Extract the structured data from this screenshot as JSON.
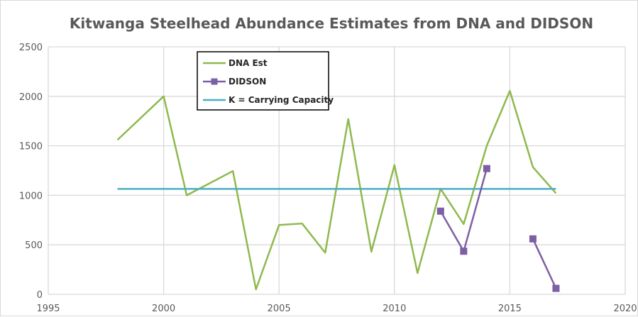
{
  "chart_data": {
    "type": "line",
    "title": "Kitwanga Steelhead Abundance Estimates from DNA and DIDSON",
    "xlabel": "",
    "ylabel": "",
    "xlim": [
      1995,
      2020
    ],
    "ylim": [
      0,
      2500
    ],
    "x_ticks": [
      1995,
      2000,
      2005,
      2010,
      2015,
      2020
    ],
    "y_ticks": [
      0,
      500,
      1000,
      1500,
      2000,
      2500
    ],
    "grid": "vertical and horizontal",
    "legend_position": "top-left",
    "series": [
      {
        "name": "DNA Est",
        "color": "#8fb94e",
        "marker": "none",
        "points": [
          [
            1998,
            1560
          ],
          [
            2000,
            2000
          ],
          [
            2001,
            1000
          ],
          [
            2003,
            1245
          ],
          [
            2004,
            50
          ],
          [
            2005,
            700
          ],
          [
            2006,
            715
          ],
          [
            2007,
            420
          ],
          [
            2008,
            1770
          ],
          [
            2009,
            430
          ],
          [
            2010,
            1305
          ],
          [
            2011,
            215
          ],
          [
            2012,
            1065
          ],
          [
            2013,
            710
          ],
          [
            2014,
            1500
          ],
          [
            2015,
            2055
          ],
          [
            2016,
            1285
          ],
          [
            2017,
            1020
          ]
        ]
      },
      {
        "name": "DIDSON",
        "color": "#7d5fa5",
        "marker": "square",
        "segments": [
          [
            [
              2012,
              840
            ],
            [
              2013,
              435
            ],
            [
              2014,
              1270
            ]
          ],
          [
            [
              2016,
              560
            ],
            [
              2017,
              60
            ]
          ]
        ]
      },
      {
        "name": "K = Carrying Capacity",
        "color": "#4aaec5",
        "marker": "none",
        "points": [
          [
            1998,
            1065
          ],
          [
            2017,
            1065
          ]
        ]
      }
    ]
  }
}
